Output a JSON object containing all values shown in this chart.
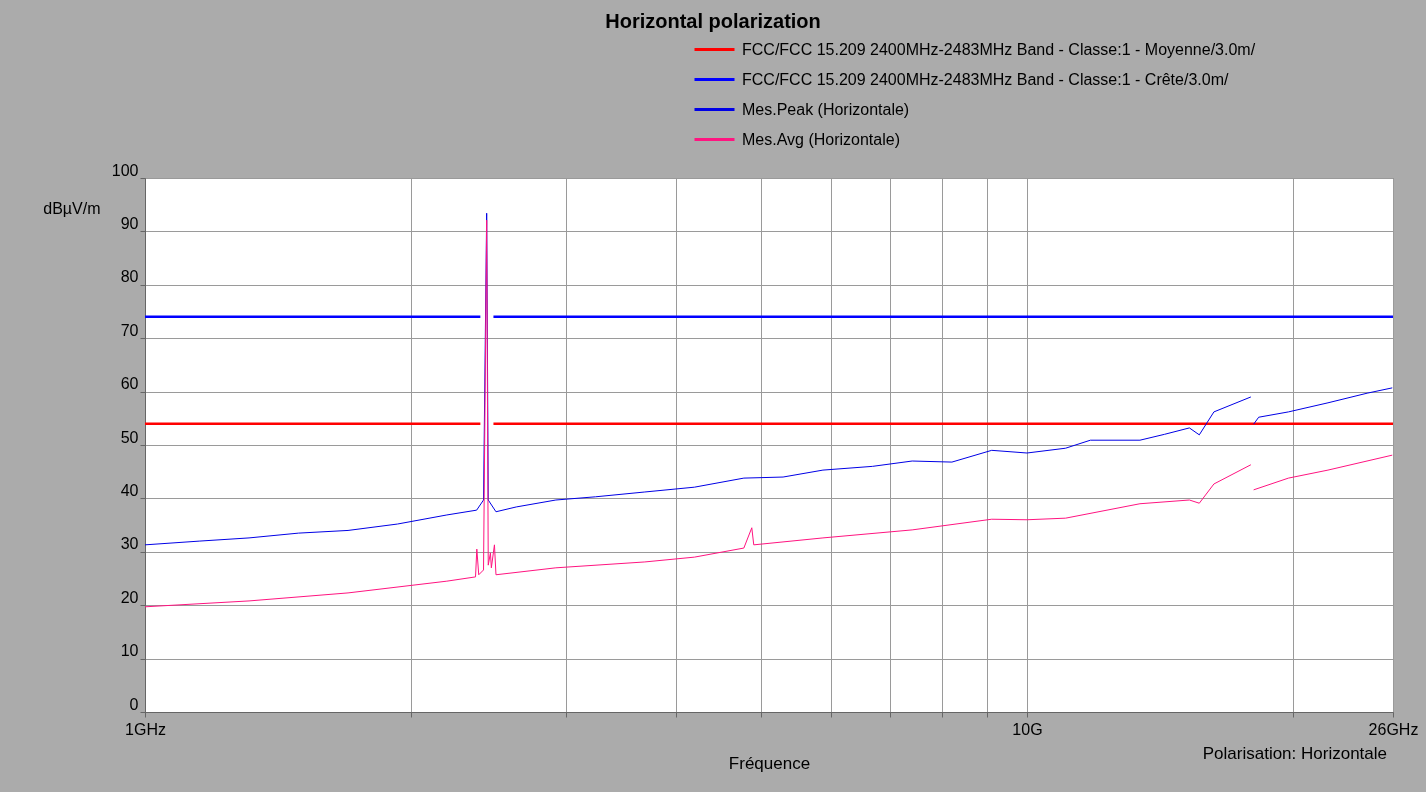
{
  "chart_data": {
    "type": "line",
    "title": "Horizontal polarization",
    "xlabel": "Fréquence",
    "ylabel": "dBµV/m",
    "annotations": [
      "Polarisation: Horizontale"
    ],
    "log": "x",
    "xlim": [
      1,
      26
    ],
    "ylim": [
      0,
      100
    ],
    "xticks": [
      {
        "value": 1,
        "label": "1GHz"
      },
      {
        "value": 2,
        "label": null
      },
      {
        "value": 3,
        "label": null
      },
      {
        "value": 4,
        "label": null
      },
      {
        "value": 5,
        "label": null
      },
      {
        "value": 6,
        "label": null
      },
      {
        "value": 7,
        "label": null
      },
      {
        "value": 8,
        "label": null
      },
      {
        "value": 9,
        "label": null
      },
      {
        "value": 10,
        "label": "10G"
      },
      {
        "value": 20,
        "label": null
      },
      {
        "value": 26,
        "label": "26GHz"
      }
    ],
    "yticks": [
      0,
      10,
      20,
      30,
      40,
      50,
      60,
      70,
      80,
      90,
      100
    ],
    "grid": true,
    "legend": "top right",
    "marker": "none",
    "line_style": "solid",
    "series": [
      {
        "name": "FCC/FCC 15.209 2400MHz-2483MHz Band - Classe:1 - Moyenne/3.0m/",
        "color": "#ff0000",
        "x": [
          1,
          2.4,
          2.44,
          2.4835,
          26
        ],
        "values": [
          54,
          54,
          null,
          54,
          54
        ]
      },
      {
        "name": "FCC/FCC 15.209 2400MHz-2483MHz Band - Classe:1 - Crête/3.0m/",
        "color": "#0000ff",
        "x": [
          1,
          2.4,
          2.44,
          2.4835,
          26
        ],
        "values": [
          74,
          74,
          null,
          74,
          74
        ]
      },
      {
        "name": "Mes.Peak (Horizontale)",
        "color": "#0000e6",
        "x": [
          1.0,
          1.152,
          1.312,
          1.493,
          1.699,
          1.933,
          2.199,
          2.377,
          2.42,
          2.44,
          2.45,
          2.5,
          2.636,
          2.923,
          3.242,
          3.687,
          4.197,
          4.775,
          5.29,
          5.87,
          6.68,
          7.41,
          8.22,
          9.12,
          10,
          11.06,
          11.8,
          13.43,
          14.32,
          15.28,
          15.68,
          16.29,
          17.94,
          18.0,
          18.07,
          18.31,
          19.79,
          21.94,
          24.3,
          25.95
        ],
        "values": [
          31.3,
          32,
          32.6,
          33.5,
          34,
          35.2,
          36.9,
          37.8,
          39.7,
          93.4,
          39.7,
          37.5,
          38.4,
          39.7,
          40.3,
          41.2,
          42.1,
          43.8,
          44,
          45.3,
          46,
          47,
          46.8,
          49,
          48.5,
          49.4,
          50.9,
          50.9,
          52,
          53.2,
          51.9,
          56.2,
          59,
          null,
          53.9,
          55.2,
          56.2,
          57.9,
          59.7,
          60.7
        ]
      },
      {
        "name": "Mes.Avg (Horizontale)",
        "color": "#ff1480",
        "x": [
          1.0,
          1.312,
          1.699,
          2.199,
          2.37,
          2.378,
          2.39,
          2.42,
          2.44,
          2.45,
          2.464,
          2.47,
          2.49,
          2.5,
          2.923,
          3.687,
          4.197,
          4.775,
          4.875,
          4.9,
          5.87,
          7.41,
          9.12,
          10,
          11.06,
          13.43,
          15.28,
          15.68,
          16.29,
          17.94,
          18.0,
          18.07,
          19.79,
          21.94,
          25.95
        ],
        "values": [
          19.7,
          20.8,
          22.3,
          24.5,
          25.3,
          30.5,
          25.7,
          26.6,
          92.1,
          27.5,
          29.8,
          27.0,
          31.3,
          25.7,
          27,
          28.1,
          29,
          30.7,
          34.5,
          31.3,
          32.6,
          34.1,
          36.1,
          36,
          36.3,
          39,
          39.7,
          39.1,
          42.7,
          46.3,
          null,
          41.6,
          43.8,
          45.3,
          48.1
        ]
      }
    ]
  }
}
